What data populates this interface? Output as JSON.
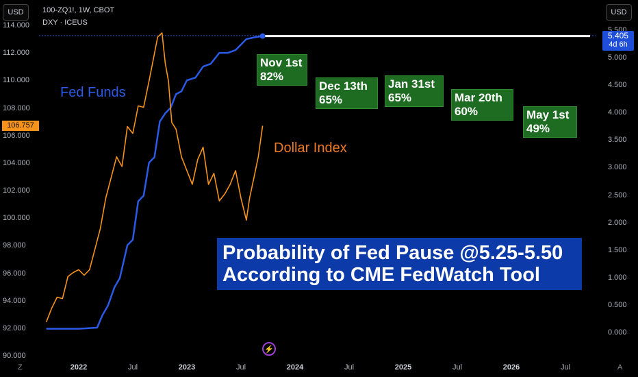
{
  "header": {
    "left_unit": "USD",
    "right_unit": "USD",
    "symbol_line": "100-ZQ1!, 1W, CBOT",
    "secondary_line": "DXY · ICEUS"
  },
  "badges": {
    "dxy_price": "106.757",
    "fedfunds_rate": "5.405",
    "fedfunds_countdown": "4d 6h"
  },
  "colors": {
    "fed_funds_line": "#2b5ae6",
    "dollar_index_line": "#f7931a",
    "probability_box": "#1e6b22",
    "banner": "#0c3aa8"
  },
  "chart_data": {
    "type": "line",
    "title": "Probability of Fed Pause @5.25-5.50 According to CME FedWatch Tool",
    "left_axis": {
      "label": "USD",
      "ticks": [
        "114.000",
        "112.000",
        "110.000",
        "108.000",
        "106.000",
        "104.000",
        "102.000",
        "100.000",
        "98.000",
        "96.000",
        "94.000",
        "92.000",
        "90.000"
      ],
      "range": [
        90,
        114
      ]
    },
    "right_axis": {
      "label": "USD",
      "ticks": [
        "5.500",
        "5.000",
        "4.500",
        "4.000",
        "3.500",
        "3.000",
        "2.500",
        "2.000",
        "1.500",
        "1.000",
        "0.500",
        "0.000"
      ],
      "range": [
        -0.4,
        5.6
      ]
    },
    "x_axis": {
      "ticks": [
        "2022",
        "Jul",
        "2023",
        "Jul",
        "2024",
        "Jul",
        "2025",
        "Jul",
        "2026",
        "Jul"
      ],
      "bold": [
        true,
        false,
        true,
        false,
        true,
        false,
        true,
        false,
        true,
        false
      ]
    },
    "series": [
      {
        "name": "Fed Funds",
        "axis": "right",
        "x": [
          2021.7,
          2021.85,
          2022.0,
          2022.17,
          2022.22,
          2022.27,
          2022.33,
          2022.38,
          2022.45,
          2022.5,
          2022.55,
          2022.6,
          2022.65,
          2022.7,
          2022.75,
          2022.8,
          2022.85,
          2022.9,
          2022.95,
          2023.0,
          2023.08,
          2023.15,
          2023.22,
          2023.3,
          2023.38,
          2023.45,
          2023.55,
          2023.62,
          2023.7
        ],
        "values": [
          0.08,
          0.08,
          0.08,
          0.1,
          0.33,
          0.5,
          0.83,
          1.0,
          1.6,
          1.7,
          2.4,
          2.5,
          3.1,
          3.2,
          3.85,
          4.0,
          4.1,
          4.35,
          4.4,
          4.6,
          4.65,
          4.85,
          4.9,
          5.1,
          5.1,
          5.15,
          5.35,
          5.38,
          5.405
        ]
      },
      {
        "name": "Dollar Index",
        "axis": "left",
        "x": [
          2021.7,
          2021.75,
          2021.8,
          2021.85,
          2021.9,
          2021.95,
          2022.0,
          2022.05,
          2022.1,
          2022.15,
          2022.2,
          2022.25,
          2022.3,
          2022.35,
          2022.4,
          2022.45,
          2022.5,
          2022.55,
          2022.6,
          2022.65,
          2022.7,
          2022.73,
          2022.77,
          2022.8,
          2022.83,
          2022.86,
          2022.9,
          2022.95,
          2023.0,
          2023.05,
          2023.1,
          2023.15,
          2023.2,
          2023.25,
          2023.3,
          2023.35,
          2023.4,
          2023.45,
          2023.5,
          2023.55,
          2023.58,
          2023.62,
          2023.66,
          2023.7
        ],
        "values": [
          92.5,
          93.5,
          94.3,
          94.2,
          95.8,
          96.1,
          96.3,
          95.9,
          96.3,
          97.8,
          99.3,
          101.5,
          103.0,
          104.5,
          103.8,
          106.7,
          106.2,
          108.2,
          108.1,
          110.0,
          112.0,
          113.2,
          113.5,
          111.3,
          110.0,
          107.0,
          106.5,
          104.5,
          103.5,
          102.5,
          104.3,
          105.2,
          102.5,
          103.3,
          101.3,
          101.8,
          102.5,
          103.5,
          101.5,
          99.9,
          101.5,
          103.0,
          104.5,
          106.757
        ]
      }
    ],
    "projection": {
      "label": "current rate held flat",
      "value": 5.405
    },
    "probabilities": [
      {
        "date": "Nov 1st",
        "pct": "82%",
        "value": 82
      },
      {
        "date": "Dec 13th",
        "pct": "65%",
        "value": 65
      },
      {
        "date": "Jan 31st",
        "pct": "65%",
        "value": 65
      },
      {
        "date": "Mar 20th",
        "pct": "60%",
        "value": 60
      },
      {
        "date": "May 1st",
        "pct": "49%",
        "value": 49
      }
    ],
    "annotations": [
      "Fed Funds",
      "Dollar Index"
    ]
  },
  "banner": {
    "line1": "Probability of Fed Pause @5.25-5.50",
    "line2": "According to CME FedWatch Tool"
  },
  "footer": {
    "left_icon_label": "Z",
    "right_icon_label": "A"
  }
}
